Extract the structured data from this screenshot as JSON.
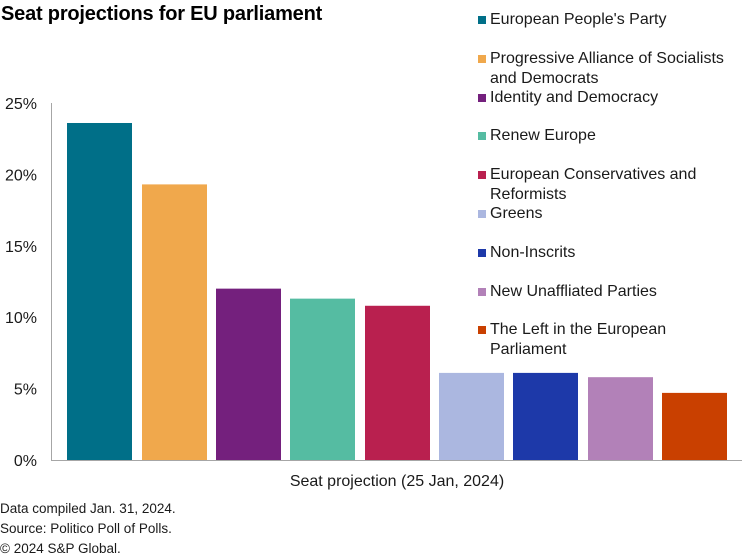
{
  "chart_data": {
    "type": "bar",
    "title": "Seat projections for EU parliament",
    "xlabel": "Seat projection (25 Jan, 2024)",
    "ylabel": "",
    "ylim": [
      0,
      25
    ],
    "yticks": [
      0,
      5,
      10,
      15,
      20,
      25
    ],
    "ytick_labels": [
      "0%",
      "5%",
      "10%",
      "15%",
      "20%",
      "25%"
    ],
    "grid": false,
    "legend_position": "right",
    "categories": [
      "Seat projection (25 Jan, 2024)"
    ],
    "series": [
      {
        "name": "European People's Party",
        "color": "#006F88",
        "values": [
          23.6
        ]
      },
      {
        "name": "Progressive Alliance of Socialists and Democrats",
        "color": "#F0A84C",
        "values": [
          19.3
        ]
      },
      {
        "name": "Identity and Democracy",
        "color": "#74207D",
        "values": [
          12.0
        ]
      },
      {
        "name": "Renew Europe",
        "color": "#55BCA2",
        "values": [
          11.3
        ]
      },
      {
        "name": "European Conservatives and Reformists",
        "color": "#B9204F",
        "values": [
          10.8
        ]
      },
      {
        "name": "Greens",
        "color": "#ABB7E0",
        "values": [
          6.1
        ]
      },
      {
        "name": "Non-Inscrits",
        "color": "#1D39A9",
        "values": [
          6.1
        ]
      },
      {
        "name": "New Unaffliated Parties",
        "color": "#B281B8",
        "values": [
          5.8
        ]
      },
      {
        "name": "The Left in the European Parliament",
        "color": "#C94000",
        "values": [
          4.7
        ]
      }
    ]
  },
  "footnotes": [
    "Data compiled Jan. 31, 2024.",
    "Source: Politico Poll of Polls.",
    "© 2024 S&P Global."
  ],
  "colors": {
    "axis": "#A6A6A6",
    "text": "#1a1a1a"
  }
}
